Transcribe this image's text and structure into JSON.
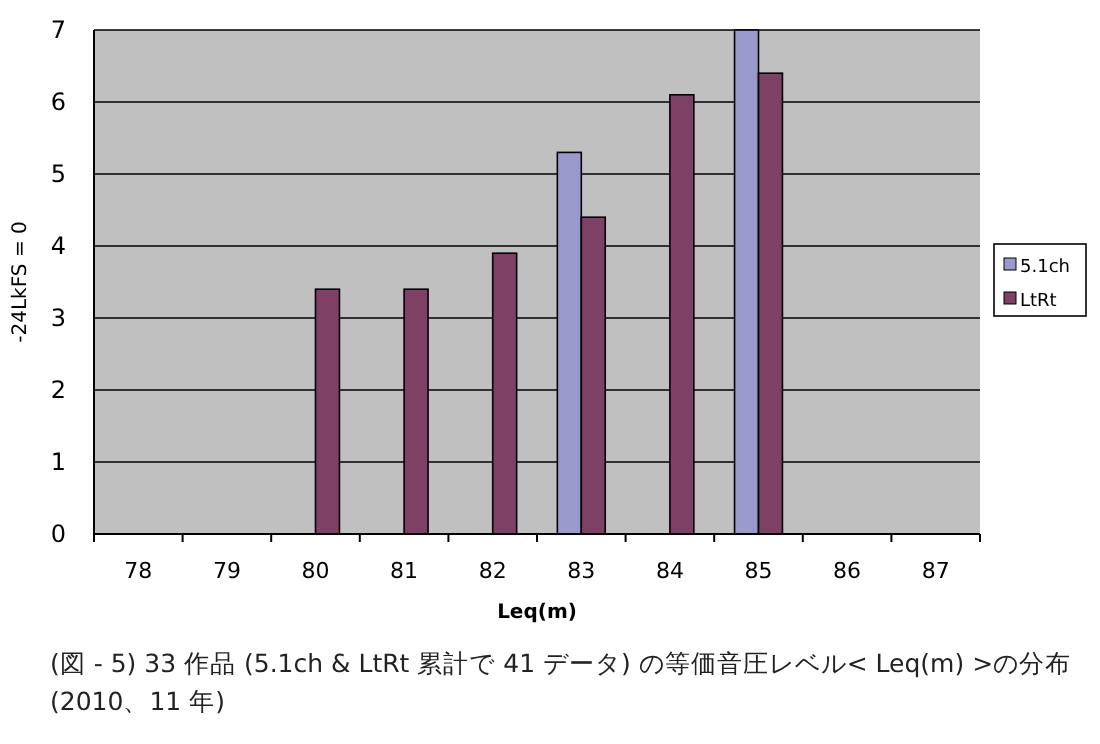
{
  "chart_data": {
    "type": "bar",
    "xlabel": "Leq(m)",
    "ylabel": "-24LkFS = 0",
    "categories": [
      "78",
      "79",
      "80",
      "81",
      "82",
      "83",
      "84",
      "85",
      "86",
      "87"
    ],
    "series": [
      {
        "name": "5.1ch",
        "color": "#9999cc",
        "values": [
          null,
          null,
          null,
          null,
          null,
          5.3,
          null,
          7.0,
          null,
          null
        ]
      },
      {
        "name": "LtRt",
        "color": "#7f4066",
        "values": [
          null,
          null,
          3.4,
          3.4,
          3.9,
          4.4,
          6.1,
          6.4,
          null,
          null
        ]
      }
    ],
    "ylim": [
      0,
      7
    ],
    "yticks": [
      0,
      1,
      2,
      3,
      4,
      5,
      6,
      7
    ],
    "grid": "y",
    "legend": "right",
    "annotations": [
      "(図 - 5) 33 作品 (5.1ch & LtRt 累計で 41 データ) の等価音圧レベル< Leq(m) >の分布 (2010、11 年)"
    ]
  }
}
